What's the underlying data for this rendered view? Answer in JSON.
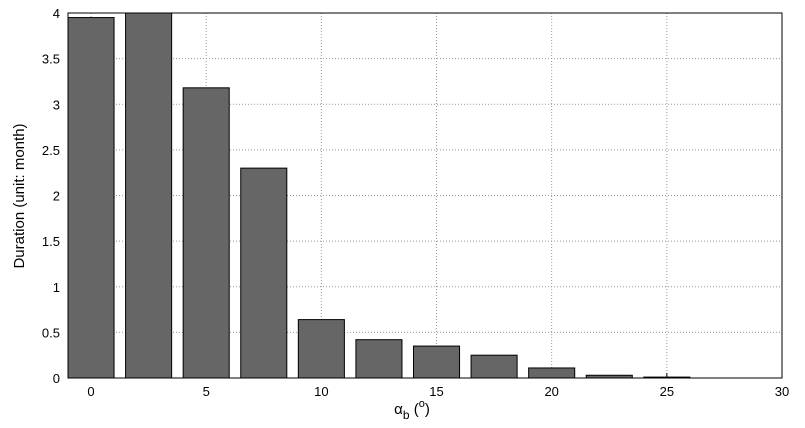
{
  "chart_data": {
    "type": "bar",
    "ylabel": "Duration (unit: month)",
    "xlabel": {
      "symbol": "α",
      "subscript": "b",
      "open": " (",
      "superscript": "o",
      "close": ")"
    },
    "x": [
      0,
      2.5,
      5,
      7.5,
      10,
      12.5,
      15,
      17.5,
      20,
      22.5,
      25
    ],
    "values": [
      3.95,
      4.0,
      3.18,
      2.3,
      0.64,
      0.42,
      0.35,
      0.25,
      0.11,
      0.03,
      0.01
    ],
    "bar_width": 2,
    "color": "#666666",
    "xlim": [
      -1,
      30
    ],
    "xticks": [
      0,
      5,
      10,
      15,
      20,
      25,
      30
    ],
    "ylim": [
      0,
      4
    ],
    "yticks": [
      0,
      0.5,
      1,
      1.5,
      2,
      2.5,
      3,
      3.5,
      4
    ],
    "grid": true
  }
}
